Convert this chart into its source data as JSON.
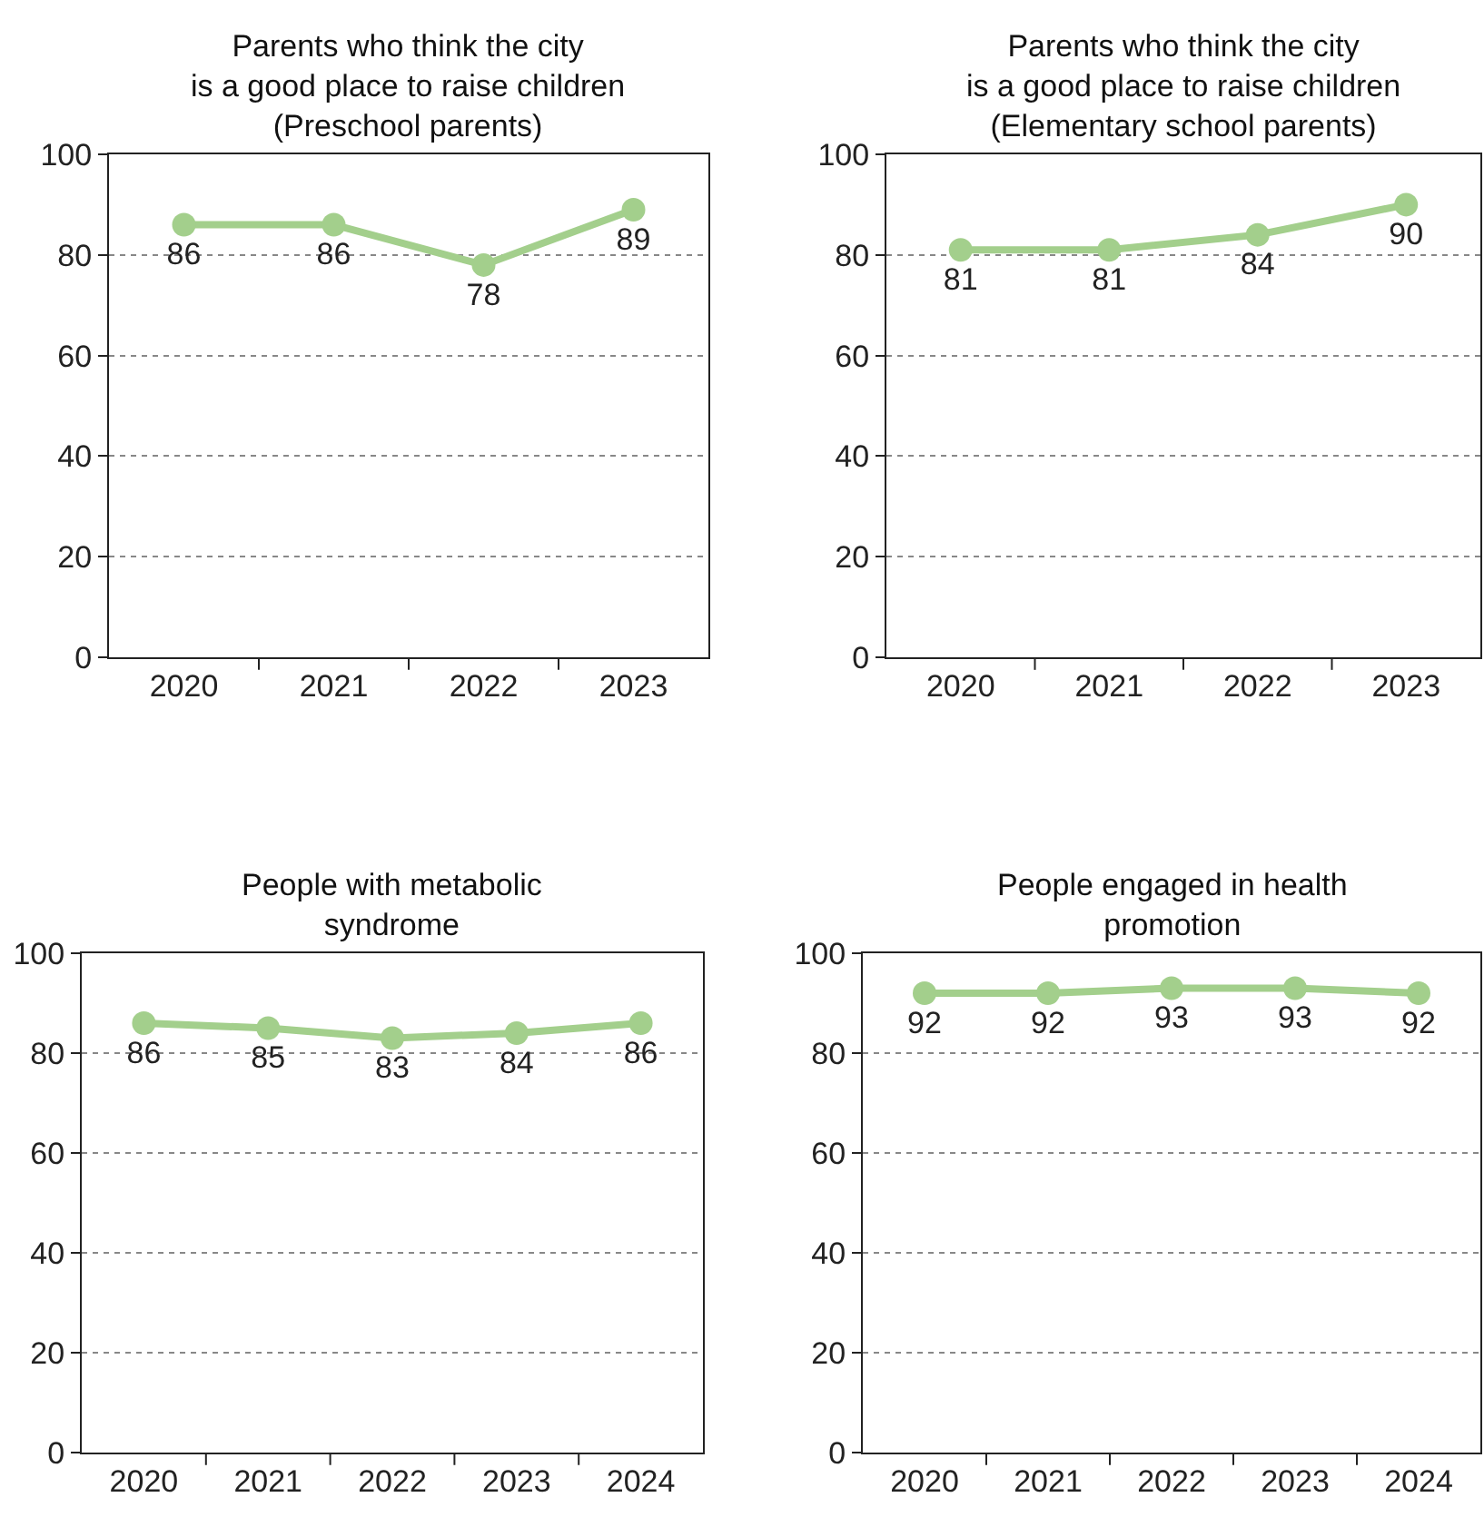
{
  "chart_data": [
    {
      "type": "line",
      "title": "Parents who think the city\nis a good place to raise children\n(Preschool parents)",
      "categories": [
        "2020",
        "2021",
        "2022",
        "2023"
      ],
      "values": [
        86,
        86,
        78,
        89
      ],
      "color": "#a3cf8c",
      "ylim": [
        0,
        100
      ],
      "yticks": [
        0,
        20,
        40,
        60,
        80,
        100
      ],
      "grid": "y",
      "data_labels": true,
      "marker": "circle"
    },
    {
      "type": "line",
      "title": "Parents who think the city\nis a good place to raise children\n(Elementary school parents)",
      "categories": [
        "2020",
        "2021",
        "2022",
        "2023"
      ],
      "values": [
        81,
        81,
        84,
        90
      ],
      "color": "#a3cf8c",
      "ylim": [
        0,
        100
      ],
      "yticks": [
        0,
        20,
        40,
        60,
        80,
        100
      ],
      "grid": "y",
      "data_labels": true,
      "marker": "circle"
    },
    {
      "type": "line",
      "title": "People with metabolic\nsyndrome",
      "categories": [
        "2020",
        "2021",
        "2022",
        "2023",
        "2024"
      ],
      "values": [
        86,
        85,
        83,
        84,
        86
      ],
      "color": "#a3cf8c",
      "ylim": [
        0,
        100
      ],
      "yticks": [
        0,
        20,
        40,
        60,
        80,
        100
      ],
      "grid": "y",
      "data_labels": true,
      "marker": "circle"
    },
    {
      "type": "line",
      "title": "People engaged in health\npromotion",
      "categories": [
        "2020",
        "2021",
        "2022",
        "2023",
        "2024"
      ],
      "values": [
        92,
        92,
        93,
        93,
        92
      ],
      "color": "#a3cf8c",
      "ylim": [
        0,
        100
      ],
      "yticks": [
        0,
        20,
        40,
        60,
        80,
        100
      ],
      "grid": "y",
      "data_labels": true,
      "marker": "circle"
    }
  ]
}
